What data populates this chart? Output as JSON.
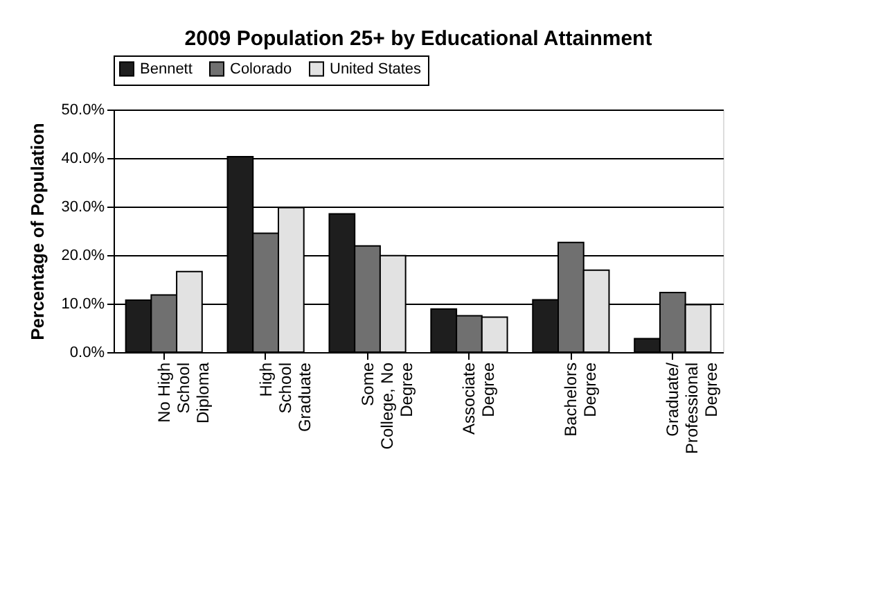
{
  "chart_data": {
    "type": "bar",
    "title": "2009 Population 25+ by Educational Attainment",
    "ylabel": "Percentage of Population",
    "categories": [
      "No High\nSchool\nDiploma",
      "High\nSchool\nGraduate",
      "Some\nCollege, No\nDegree",
      "Associate\nDegree",
      "Bachelors\nDegree",
      "Graduate/\nProfessional\nDegree"
    ],
    "series": [
      {
        "name": "Bennett",
        "color": "#1e1e1e",
        "values": [
          10.7,
          40.3,
          28.5,
          8.9,
          10.8,
          2.8
        ]
      },
      {
        "name": "Colorado",
        "color": "#707070",
        "values": [
          11.8,
          24.5,
          21.9,
          7.5,
          22.6,
          12.3
        ]
      },
      {
        "name": "United States",
        "color": "#e2e2e2",
        "values": [
          16.6,
          29.8,
          19.9,
          7.2,
          16.9,
          9.8
        ]
      }
    ],
    "ylim": [
      0,
      50
    ],
    "yticks": [
      {
        "value": 0,
        "label": "0.0%"
      },
      {
        "value": 10,
        "label": "10.0%"
      },
      {
        "value": 20,
        "label": "20.0%"
      },
      {
        "value": 30,
        "label": "30.0%"
      },
      {
        "value": 40,
        "label": "40.0%"
      },
      {
        "value": 50,
        "label": "50.0%"
      }
    ],
    "grid": "y",
    "legend": "top"
  }
}
